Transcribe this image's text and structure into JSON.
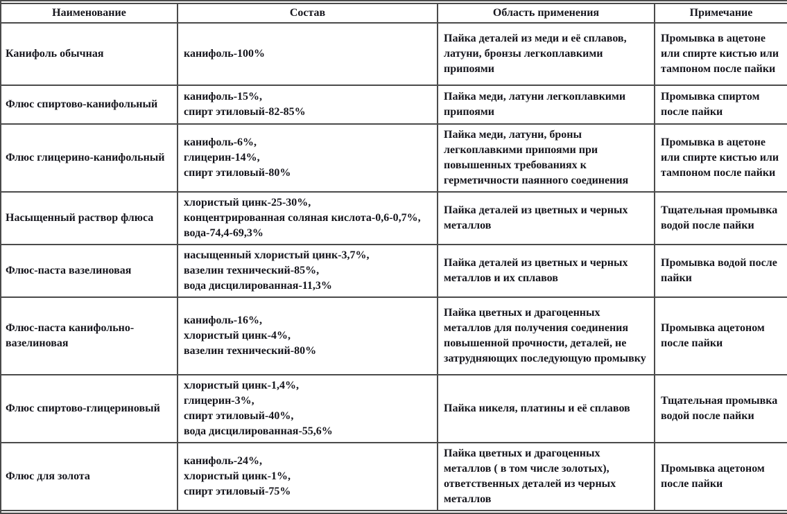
{
  "colors": {
    "border": "#4a4a4a",
    "text": "#15151c",
    "background": "#ffffff"
  },
  "table": {
    "headers": [
      "Наименование",
      "Состав",
      "Область применения",
      "Примечание"
    ],
    "rows": [
      {
        "name": "Канифоль обычная",
        "composition": [
          "канифоль-100%"
        ],
        "application": "Пайка деталей из меди и её сплавов, латуни, бронзы легкоплавкими припоями",
        "note": "Промывка в ацетоне или спирте кистью или тампоном после пайки"
      },
      {
        "name": "Флюс спиртово-канифольный",
        "composition": [
          "канифоль-15%,",
          "спирт этиловый-82-85%"
        ],
        "application": "Пайка меди, латуни легкоплавкими припоями",
        "note": "Промывка спиртом после пайки"
      },
      {
        "name": "Флюс глицерино-канифольный",
        "composition": [
          "канифоль-6%,",
          "глицерин-14%,",
          "спирт этиловый-80%"
        ],
        "application": "Пайка меди, латуни, броны легкоплавкими припоями при повышенных требованиях к герметичности паянного соединения",
        "note": "Промывка в ацетоне или спирте кистью или тампоном после пайки"
      },
      {
        "name": "Насыщенный раствор флюса",
        "composition": [
          "хлористый цинк-25-30%,",
          "концентрированная соляная кислота-0,6-0,7%,",
          "вода-74,4-69,3%"
        ],
        "application": "Пайка деталей из цветных и черных металлов",
        "note": "Тщательная промывка водой после пайки"
      },
      {
        "name": "Флюс-паста вазелиновая",
        "composition": [
          "насыщенный хлористый цинк-3,7%,",
          "вазелин технический-85%,",
          "вода дисцилированная-11,3%"
        ],
        "application": "Пайка деталей из цветных и черных металлов и их сплавов",
        "note": "Промывка водой после пайки"
      },
      {
        "name": "Флюс-паста канифольно-вазелиновая",
        "composition": [
          "канифоль-16%,",
          "хлористый цинк-4%,",
          "вазелин технический-80%"
        ],
        "application": "Пайка цветных и драгоценных металлов для получения соединения повышенной прочности, деталей, не затрудняющих последующую промывку",
        "note": "Промывка ацетоном после пайки"
      },
      {
        "name": "Флюс спиртово-глицериновый",
        "composition": [
          "хлористый цинк-1,4%,",
          "глицерин-3%,",
          "спирт этиловый-40%,",
          "вода дисцилированная-55,6%"
        ],
        "application": "Пайка никеля, платины и её сплавов",
        "note": "Тщательная промывка водой после пайки"
      },
      {
        "name": "Флюс для золота",
        "composition": [
          "канифоль-24%,",
          "хлористый цинк-1%,",
          "спирт этиловый-75%"
        ],
        "application": "Пайка цветных и драгоценных металлов ( в том числе золотых), ответственных деталей из черных металлов",
        "note": "Промывка ацетоном после пайки"
      }
    ]
  }
}
